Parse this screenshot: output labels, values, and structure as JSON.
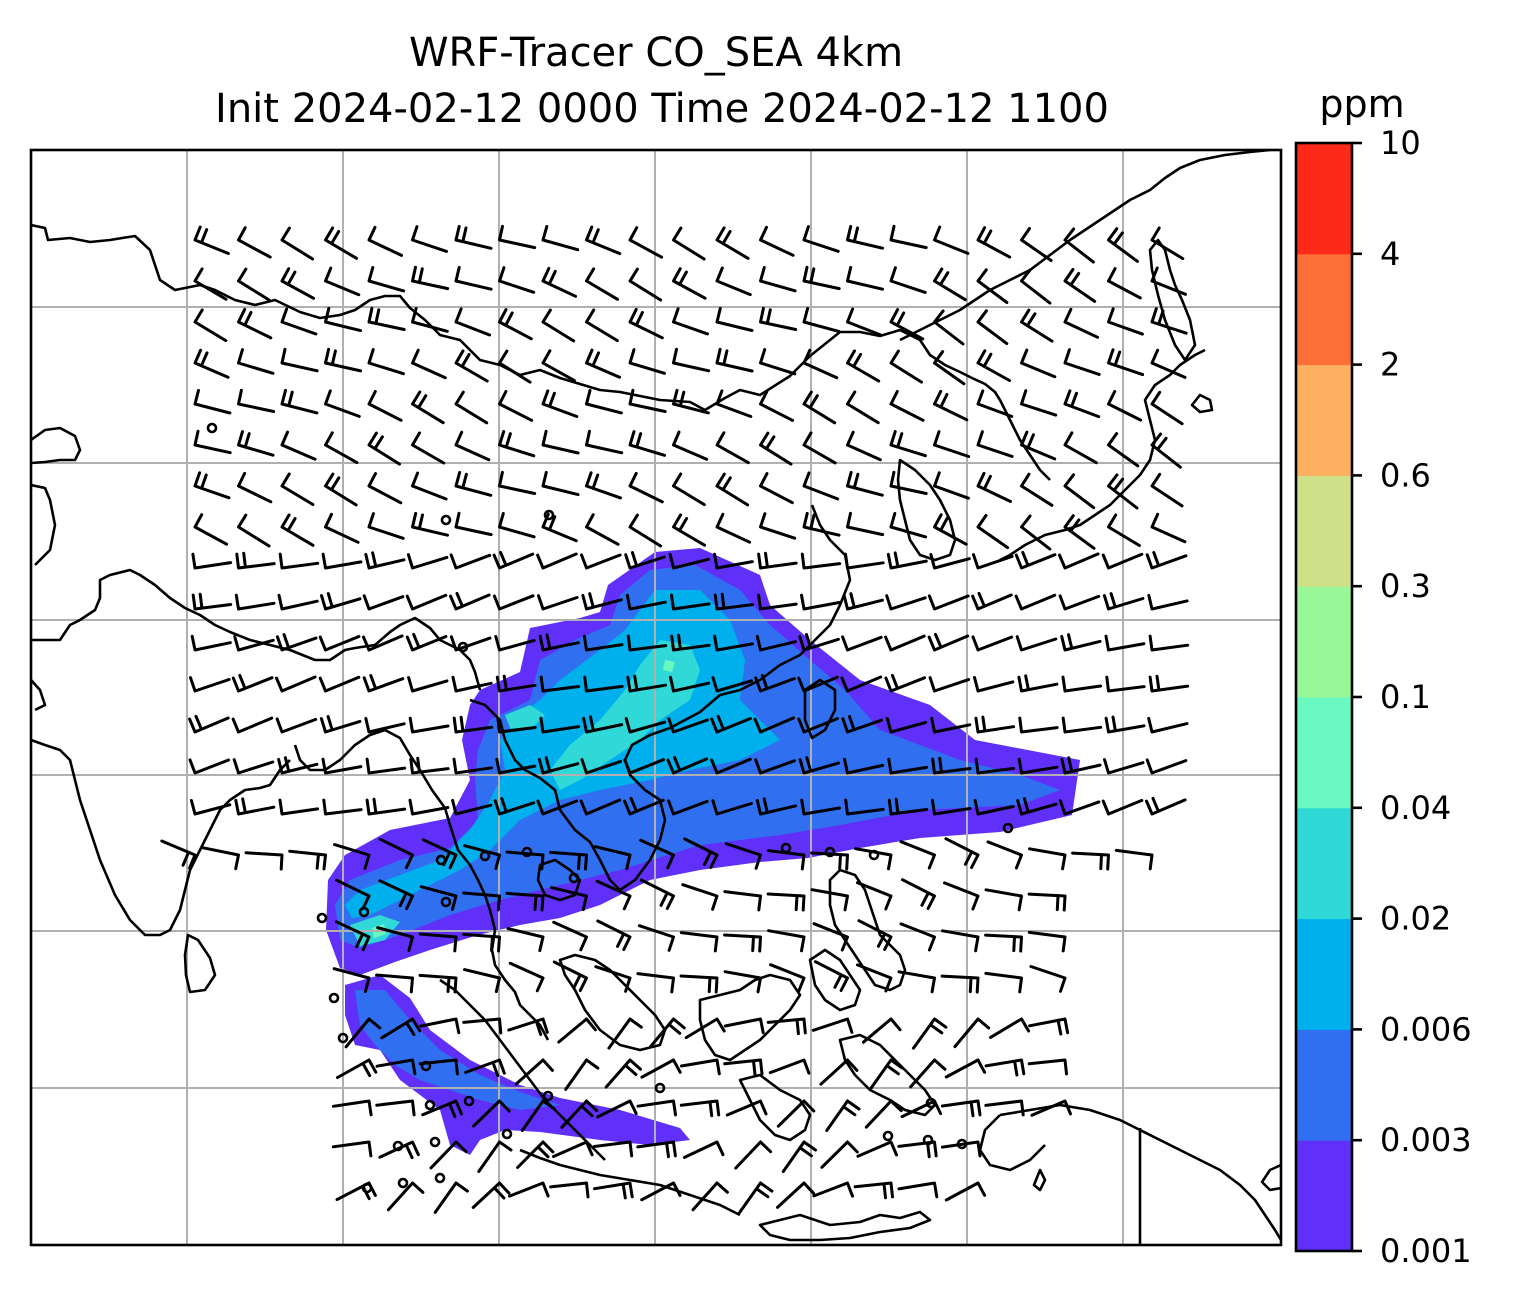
{
  "chart_data": {
    "type": "heatmap",
    "title": "WRF-Tracer CO_SEA 4km",
    "subtitle": "Init 2024-02-12 0000 Time 2024-02-12 1100",
    "variable": "CO tracer concentration",
    "colorbar": {
      "unit": "ppm",
      "levels": [
        "0.001",
        "0.003",
        "0.006",
        "0.02",
        "0.04",
        "0.1",
        "0.3",
        "0.6",
        "2",
        "4",
        "10"
      ],
      "colors": [
        "#6030f8",
        "#3070f0",
        "#00b0ec",
        "#30d8d8",
        "#68f8c0",
        "#98f898",
        "#d0e088",
        "#fcb060",
        "#fc7038",
        "#fc2818"
      ]
    },
    "grid": true,
    "overlays": [
      "coastlines",
      "wind barbs"
    ],
    "plume": {
      "description": "Tracer plume over mainland Southeast Asia and South China Sea, extending west across Andaman Sea and south along Sumatra/Java",
      "max_level_reached": "0.3"
    }
  },
  "colors": {
    "background": "#ffffff",
    "gridline": "#b0b0b0",
    "coastline": "#000000"
  }
}
